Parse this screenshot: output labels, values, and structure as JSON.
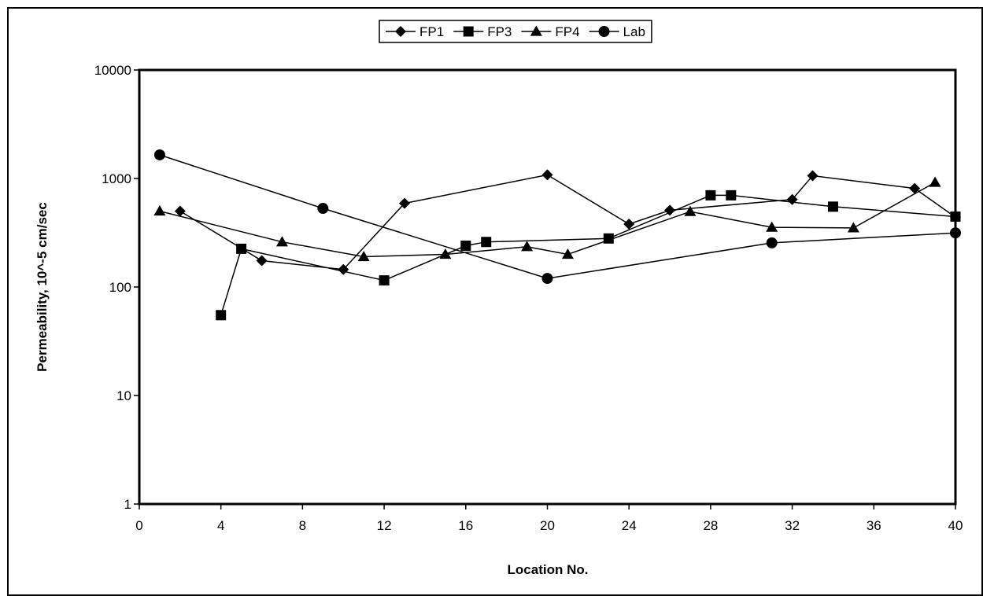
{
  "chart_data": {
    "type": "line",
    "title": "",
    "xlabel": "Location No.",
    "ylabel": "Permeability, 10^-5 cm/sec",
    "xlim": [
      0,
      40
    ],
    "ylim": [
      1,
      10000
    ],
    "yscale": "log",
    "x_ticks": [
      0,
      4,
      8,
      12,
      16,
      20,
      24,
      28,
      32,
      36,
      40
    ],
    "x_tick_labels": [
      "0",
      "4",
      "8",
      "12",
      "16",
      "20",
      "24",
      "28",
      "32",
      "36",
      "40"
    ],
    "y_ticks": [
      1,
      10,
      100,
      1000,
      10000
    ],
    "y_tick_labels": [
      "1",
      "10",
      "100",
      "1000",
      "10000"
    ],
    "grid": false,
    "legend_position": "top-center",
    "series": [
      {
        "name": "FP1",
        "marker": "diamond",
        "points": [
          [
            2,
            500
          ],
          [
            6,
            175
          ],
          [
            10,
            145
          ],
          [
            13,
            590
          ],
          [
            20,
            1080
          ],
          [
            24,
            380
          ],
          [
            26,
            510
          ],
          [
            32,
            640
          ],
          [
            33,
            1060
          ],
          [
            38,
            810
          ],
          [
            40,
            440
          ]
        ]
      },
      {
        "name": "FP3",
        "marker": "square",
        "points": [
          [
            4,
            55
          ],
          [
            5,
            225
          ],
          [
            12,
            115
          ],
          [
            16,
            240
          ],
          [
            17,
            260
          ],
          [
            23,
            280
          ],
          [
            28,
            700
          ],
          [
            29,
            700
          ],
          [
            34,
            550
          ],
          [
            40,
            445
          ]
        ]
      },
      {
        "name": "FP4",
        "marker": "triangle",
        "points": [
          [
            1,
            500
          ],
          [
            7,
            260
          ],
          [
            11,
            190
          ],
          [
            15,
            200
          ],
          [
            19,
            235
          ],
          [
            21,
            200
          ],
          [
            27,
            495
          ],
          [
            31,
            355
          ],
          [
            35,
            350
          ],
          [
            39,
            920
          ]
        ]
      },
      {
        "name": "Lab",
        "marker": "circle",
        "points": [
          [
            1,
            1650
          ],
          [
            9,
            530
          ],
          [
            20,
            120
          ],
          [
            31,
            255
          ],
          [
            40,
            315
          ]
        ]
      }
    ]
  }
}
